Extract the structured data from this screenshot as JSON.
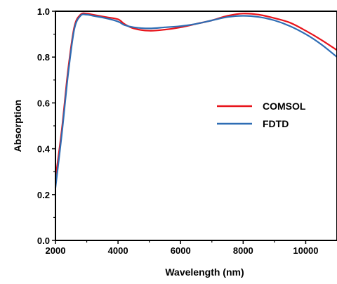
{
  "chart_data": {
    "type": "line",
    "title": "",
    "xlabel": "Wavelength (nm)",
    "ylabel": "Absorption",
    "xlim": [
      2000,
      11000
    ],
    "ylim": [
      0.0,
      1.0
    ],
    "x_ticks": [
      2000,
      4000,
      6000,
      8000,
      10000
    ],
    "x_tick_labels": [
      "2000",
      "4000",
      "6000",
      "8000",
      "10000"
    ],
    "y_ticks": [
      0.0,
      0.2,
      0.4,
      0.6,
      0.8,
      1.0
    ],
    "y_tick_labels": [
      "0.0",
      "0.2",
      "0.4",
      "0.6",
      "0.8",
      "1.0"
    ],
    "grid": false,
    "legend_position": "right-middle",
    "series": [
      {
        "name": "COMSOL",
        "color": "#e8141b",
        "x": [
          2000,
          2200,
          2400,
          2600,
          2800,
          3000,
          3200,
          3600,
          4000,
          4200,
          4500,
          5000,
          5500,
          6000,
          6500,
          7000,
          7500,
          8000,
          8500,
          9000,
          9500,
          10000,
          10500,
          11000
        ],
        "y": [
          0.27,
          0.48,
          0.74,
          0.93,
          0.985,
          0.99,
          0.985,
          0.975,
          0.965,
          0.945,
          0.925,
          0.915,
          0.92,
          0.93,
          0.945,
          0.96,
          0.98,
          0.99,
          0.985,
          0.97,
          0.95,
          0.915,
          0.875,
          0.83
        ]
      },
      {
        "name": "FDTD",
        "color": "#2e6db4",
        "x": [
          2000,
          2200,
          2400,
          2600,
          2800,
          3000,
          3200,
          3600,
          4000,
          4200,
          4500,
          5000,
          5500,
          6000,
          6500,
          7000,
          7500,
          8000,
          8500,
          9000,
          9500,
          10000,
          10500,
          11000
        ],
        "y": [
          0.23,
          0.46,
          0.72,
          0.92,
          0.98,
          0.985,
          0.98,
          0.97,
          0.955,
          0.94,
          0.93,
          0.925,
          0.93,
          0.935,
          0.945,
          0.96,
          0.975,
          0.98,
          0.975,
          0.96,
          0.935,
          0.9,
          0.855,
          0.8
        ]
      }
    ]
  }
}
